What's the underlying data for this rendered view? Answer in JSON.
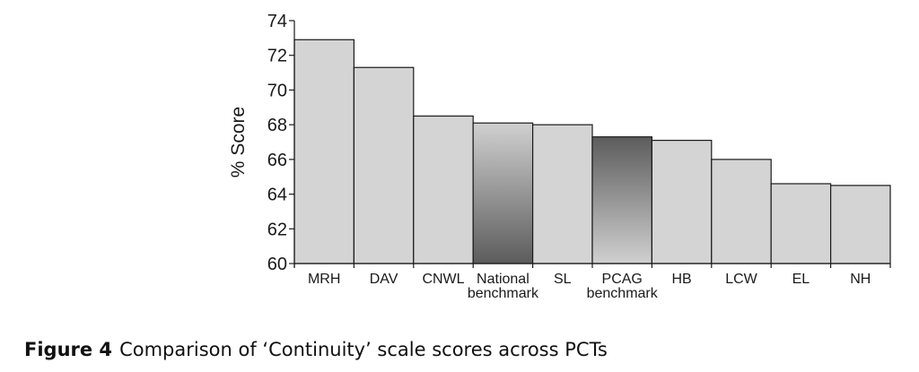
{
  "chart_data": {
    "type": "bar",
    "title": "",
    "xlabel": "",
    "ylabel": "% Score",
    "ylim": [
      60,
      74
    ],
    "yticks": [
      60,
      62,
      64,
      66,
      68,
      70,
      72,
      74
    ],
    "grid": false,
    "categories": [
      [
        "MRH"
      ],
      [
        "DAV"
      ],
      [
        "CNWL"
      ],
      [
        "National",
        "benchmark"
      ],
      [
        "SL"
      ],
      [
        "PCAG",
        "benchmark"
      ],
      [
        "HB"
      ],
      [
        "LCW"
      ],
      [
        "EL"
      ],
      [
        "NH"
      ]
    ],
    "values": [
      72.9,
      71.3,
      68.5,
      68.1,
      68.0,
      67.3,
      67.1,
      66.0,
      64.6,
      64.5
    ],
    "bar_styles": [
      "plain",
      "plain",
      "plain",
      "gradient-dark-bottom",
      "plain",
      "gradient-dark-top",
      "plain",
      "plain",
      "plain",
      "plain"
    ],
    "colors": {
      "bar_fill": "#d4d4d4",
      "bar_stroke": "#1a1a1a",
      "gradient_light": "#d0d0d0",
      "gradient_dark": "#5c5c5c",
      "axis": "#1a1a1a",
      "text": "#1a1a1a"
    }
  },
  "caption": {
    "label": "Figure 4",
    "text": "Comparison of ‘Continuity’ scale scores across PCTs"
  }
}
